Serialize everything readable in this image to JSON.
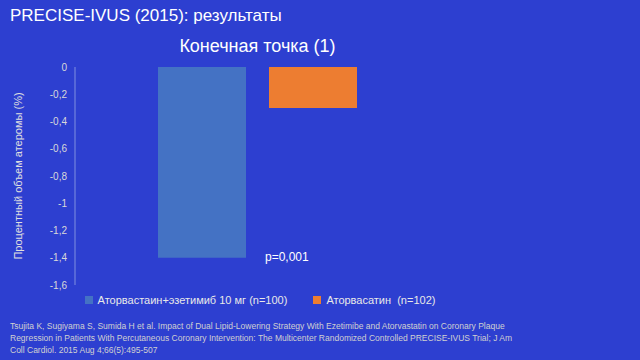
{
  "slide_title": "PRECISE-IVUS (2015): результаты",
  "citation": "Tsujita K, Sugiyama S, Sumida H et al. Impact of Dual Lipid-Lowering Strategy With Ezetimibe and Atorvastatin on Coronary Plaque Regression in Patients With Percutaneous Coronary Intervention: The Multicenter Randomized Controlled PRECISE-IVUS Trial; J Am Coll Cardiol. 2015 Aug 4;66(5):495-507",
  "chart_data": {
    "type": "bar",
    "title": "Конечная точка (1)",
    "ylabel": "Процентный объем атеромы (%)",
    "categories": [
      null
    ],
    "series": [
      {
        "name": "Аторвастаин+эзетимиб 10 мг (n=100)",
        "color": "#4472c4",
        "values": [
          -1.4
        ]
      },
      {
        "name": "Аторвасатин  (n=102)",
        "color": "#ed7d31",
        "values": [
          -0.3
        ]
      }
    ],
    "ylim": [
      -1.6,
      0
    ],
    "yticks": [
      0,
      {
        "value": -0.2,
        "label": "-0,2"
      },
      {
        "value": -0.4,
        "label": "-0,4"
      },
      {
        "value": -0.6,
        "label": "-0,6"
      },
      {
        "value": -0.8,
        "label": "-0,8"
      },
      -1,
      {
        "value": -1.2,
        "label": "-1,2"
      },
      {
        "value": -1.4,
        "label": "-1,4"
      },
      {
        "value": -1.6,
        "label": "-1,6"
      }
    ],
    "annotations": [
      "p=0,001"
    ],
    "grid": false,
    "legend": "bottom"
  }
}
